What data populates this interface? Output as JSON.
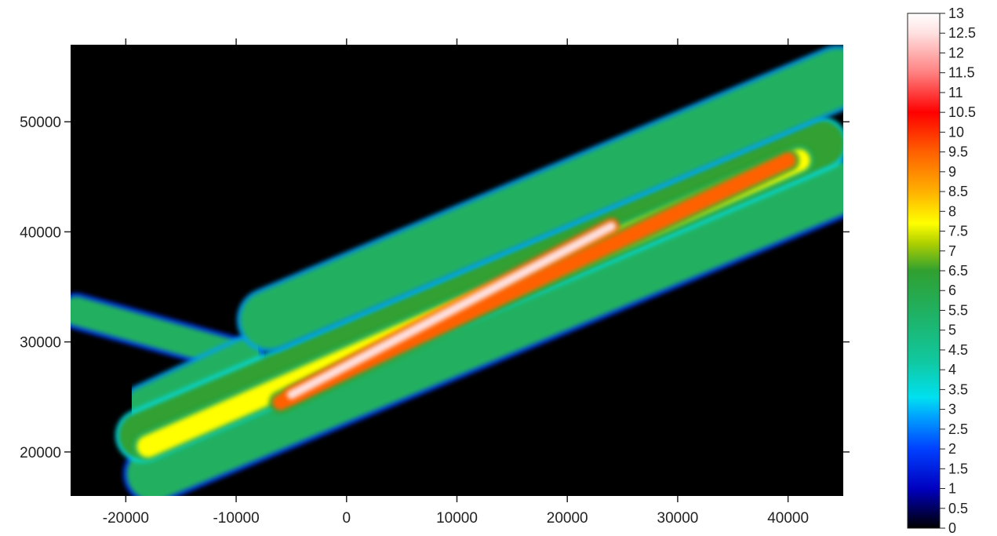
{
  "chart_data": {
    "type": "heatmap",
    "title": "",
    "xlabel": "",
    "ylabel": "",
    "xlim": [
      -25000,
      45000
    ],
    "ylim": [
      16000,
      57000
    ],
    "x_ticks": [
      -20000,
      -10000,
      0,
      10000,
      20000,
      30000,
      40000
    ],
    "x_tick_labels": [
      "-20000",
      "-10000",
      "0",
      "10000",
      "20000",
      "30000",
      "40000"
    ],
    "y_ticks": [
      20000,
      30000,
      40000,
      50000
    ],
    "y_tick_labels": [
      "20000",
      "30000",
      "40000",
      "50000"
    ],
    "background_color": "#000000",
    "colorbar": {
      "min": 0,
      "max": 13,
      "ticks": [
        0,
        0.5,
        1,
        1.5,
        2,
        2.5,
        3,
        3.5,
        4,
        4.5,
        5,
        5.5,
        6,
        6.5,
        7,
        7.5,
        8,
        8.5,
        9,
        9.5,
        10,
        10.5,
        11,
        11.5,
        12,
        12.5,
        13
      ],
      "tick_labels": [
        "0",
        "0.5",
        "1",
        "1.5",
        "2",
        "2.5",
        "3",
        "3.5",
        "4",
        "4.5",
        "5",
        "5.5",
        "6",
        "6.5",
        "7",
        "7.5",
        "8",
        "8.5",
        "9",
        "9.5",
        "10",
        "10.5",
        "11",
        "11.5",
        "12",
        "12.5",
        "13"
      ],
      "colors": [
        "#000000",
        "#000060",
        "#0000c0",
        "#0040ff",
        "#00a0ff",
        "#00e0f0",
        "#10c8a0",
        "#20b060",
        "#30a030",
        "#b0d000",
        "#ffff00",
        "#ffb000",
        "#ff6000",
        "#ff0000",
        "#ff8080",
        "#ffe0e0",
        "#ffffff"
      ],
      "color_stops": [
        0,
        0.5,
        1,
        2,
        2.8,
        3.3,
        4.2,
        5.5,
        6.5,
        7.2,
        7.7,
        8.5,
        9.5,
        10.5,
        11.5,
        12.5,
        13
      ]
    },
    "swaths": [
      {
        "x1": -24500,
        "y1": 32800,
        "x2": -9000,
        "y2": 28500,
        "w": 2600,
        "v": 4.5
      },
      {
        "x1": -18500,
        "y1": 24500,
        "x2": -9000,
        "y2": 29000,
        "w": 2600,
        "v": 5.2
      },
      {
        "x1": -17500,
        "y1": 18000,
        "x2": 44500,
        "y2": 44000,
        "w": 4800,
        "v": 5.0
      },
      {
        "x1": -18500,
        "y1": 21500,
        "x2": 43000,
        "y2": 48000,
        "w": 4200,
        "v": 6.0
      },
      {
        "x1": -7000,
        "y1": 32000,
        "x2": 44500,
        "y2": 54000,
        "w": 5200,
        "v": 5.5
      },
      {
        "x1": -18000,
        "y1": 20500,
        "x2": 41000,
        "y2": 46500,
        "w": 2000,
        "v": 7.5
      },
      {
        "x1": -6000,
        "y1": 24500,
        "x2": 40000,
        "y2": 46500,
        "w": 1400,
        "v": 9.0
      },
      {
        "x1": -5000,
        "y1": 25200,
        "x2": 24000,
        "y2": 40500,
        "w": 800,
        "v": 12.0
      }
    ]
  }
}
